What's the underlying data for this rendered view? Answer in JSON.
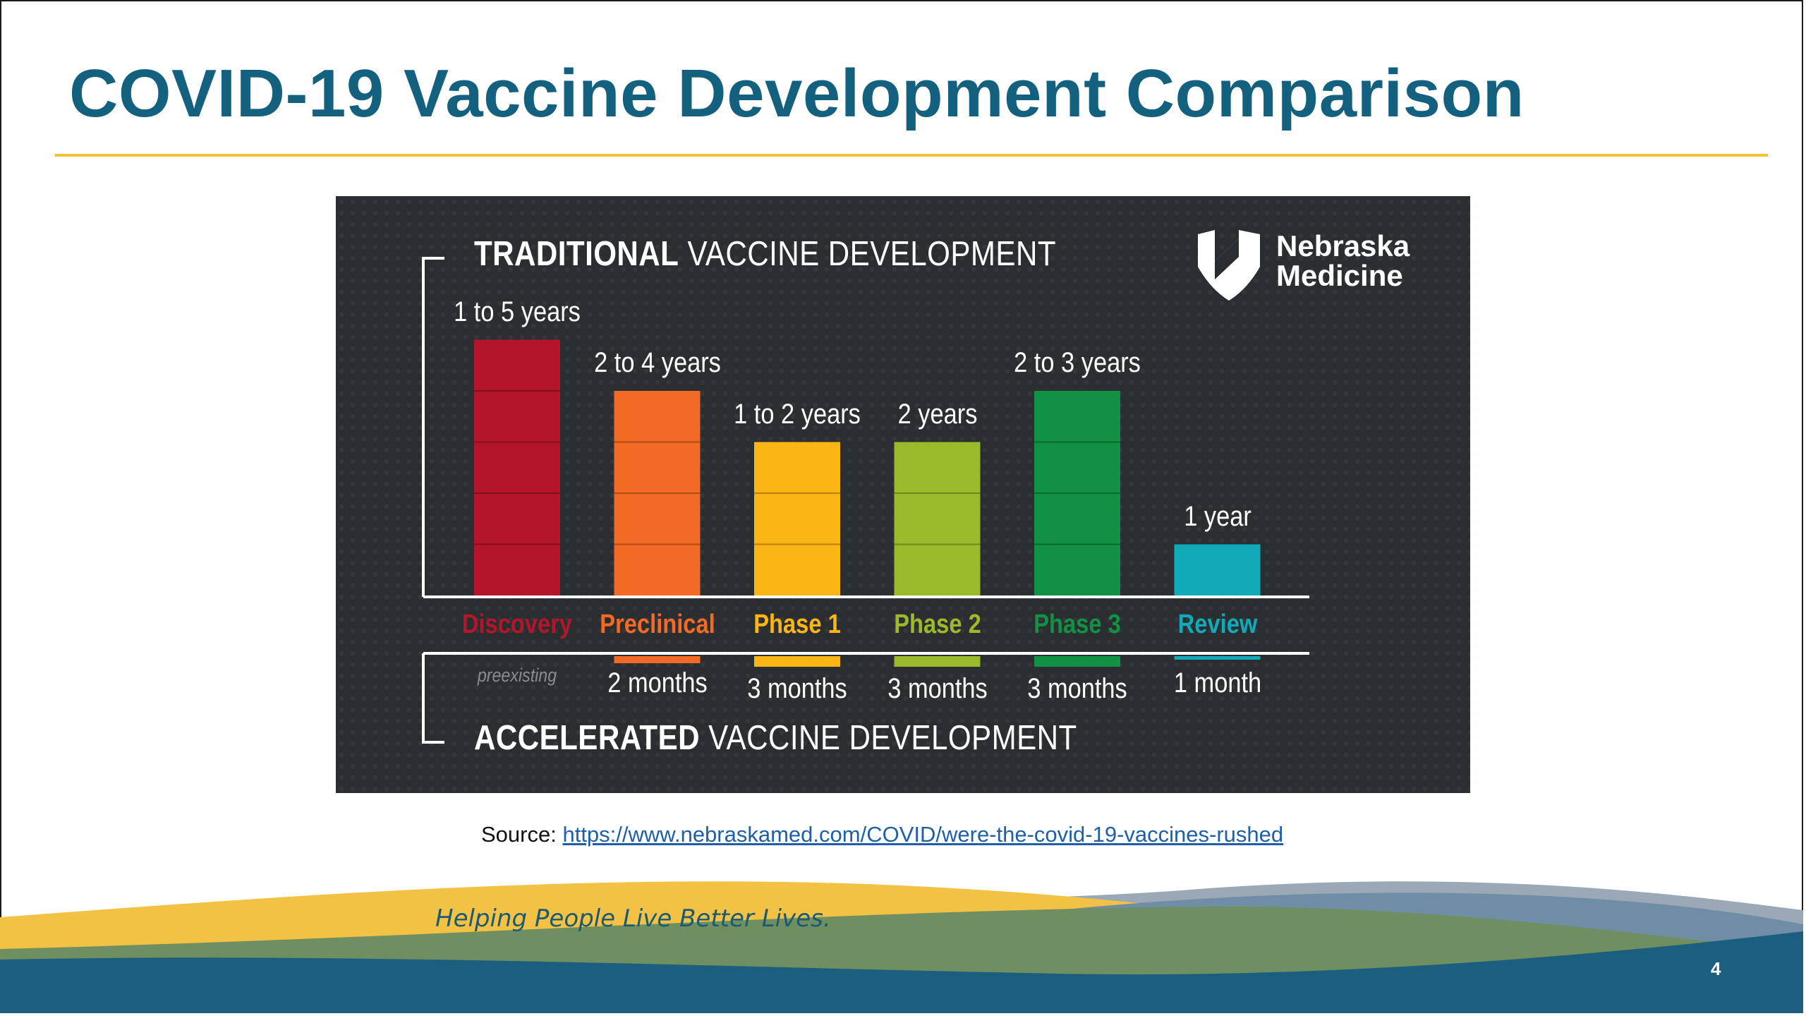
{
  "slide": {
    "title": "COVID-19 Vaccine Development Comparison",
    "source_label": "Source:",
    "source_link": "https://www.nebraskamed.com/COVID/were-the-covid-19-vaccines-rushed",
    "tagline": "Helping People Live Better Lives.",
    "slide_number": "4",
    "colors": {
      "title": "#13607f",
      "rule": "#f2c232",
      "link": "#1f5fa8"
    }
  },
  "graphic": {
    "heading_top_bold": "TRADITIONAL",
    "heading_top_rest": "VACCINE DEVELOPMENT",
    "heading_bottom_bold": "ACCELERATED",
    "heading_bottom_rest": "VACCINE DEVELOPMENT",
    "logo": {
      "icon": "nebraska-medicine-logo-icon",
      "line1": "Nebraska",
      "line2": "Medicine"
    },
    "preexisting_label": "preexisting"
  },
  "chart_data": {
    "type": "bar",
    "categories": [
      "Discovery",
      "Preclinical",
      "Phase 1",
      "Phase 2",
      "Phase 3",
      "Review"
    ],
    "colors": [
      "#b5152b",
      "#f26a24",
      "#fbb616",
      "#9bba2b",
      "#119144",
      "#10aab8"
    ],
    "series": [
      {
        "name": "TRADITIONAL VACCINE DEVELOPMENT",
        "values": [
          5,
          4,
          3,
          3,
          4,
          1
        ],
        "labels": [
          "1 to 5 years",
          "2 to 4 years",
          "1 to 2 years",
          "2 years",
          "2 to 3 years",
          "1 year"
        ]
      },
      {
        "name": "ACCELERATED VACCINE DEVELOPMENT",
        "values": [
          0,
          2,
          3,
          3,
          3,
          1
        ],
        "labels": [
          "",
          "2 months",
          "3 months",
          "3 months",
          "3 months",
          "1 month"
        ]
      }
    ],
    "ylim": [
      0,
      5
    ]
  }
}
